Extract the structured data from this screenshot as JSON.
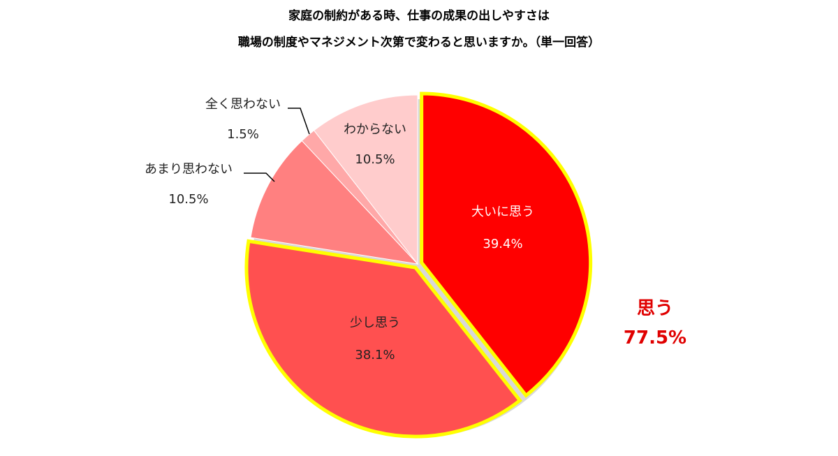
{
  "title_line1": "家庭の制約がある時、仕事の成果の出しやすさは",
  "title_line2": "職場の制度やマネジメント次第で変わると思いますか。（単一回答）",
  "chart_data": {
    "type": "pie",
    "slices": [
      {
        "label": "大いに思う",
        "value": 39.4,
        "value_label": "39.4%",
        "color": "#ff0000",
        "highlight": true
      },
      {
        "label": "少し思う",
        "value": 38.1,
        "value_label": "38.1%",
        "color": "#ff5050",
        "highlight": true
      },
      {
        "label": "あまり思わない",
        "value": 10.5,
        "value_label": "10.5%",
        "color": "#ff8080",
        "highlight": false
      },
      {
        "label": "全く思わない",
        "value": 1.5,
        "value_label": "1.5%",
        "color": "#ffa8a8",
        "highlight": false
      },
      {
        "label": "わからない",
        "value": 10.5,
        "value_label": "10.5%",
        "color": "#ffcccc",
        "highlight": false
      }
    ],
    "summary": {
      "label": "思う",
      "value_label": "77.5%",
      "color": "#e00000"
    },
    "highlight_outline_color": "#ffff00"
  }
}
